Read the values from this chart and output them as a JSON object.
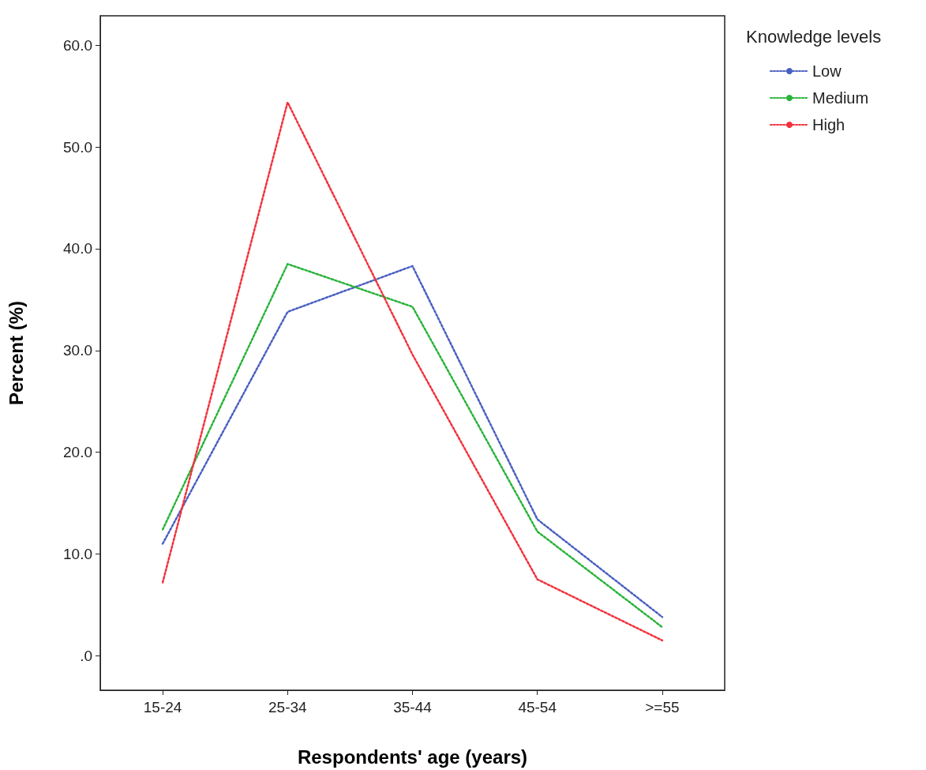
{
  "chart_data": {
    "type": "line",
    "xlabel": "Respondents' age (years)",
    "ylabel": "Percent (%)",
    "legend_title": "Knowledge levels",
    "categories": [
      "15-24",
      "25-34",
      "35-44",
      "45-54",
      ">=55"
    ],
    "series": [
      {
        "name": "Low",
        "color": "#4a5fc1",
        "values": [
          11.0,
          33.8,
          38.3,
          13.4,
          3.8
        ]
      },
      {
        "name": "Medium",
        "color": "#29b33a",
        "values": [
          12.4,
          38.5,
          34.3,
          12.2,
          2.8
        ]
      },
      {
        "name": "High",
        "color": "#f2313b",
        "values": [
          7.2,
          54.4,
          29.6,
          7.5,
          1.5
        ]
      }
    ],
    "ylim": [
      -3.4,
      62.9
    ],
    "yticks": [
      {
        "value": 0,
        "label": ".0"
      },
      {
        "value": 10,
        "label": "10.0"
      },
      {
        "value": 20,
        "label": "20.0"
      },
      {
        "value": 30,
        "label": "30.0"
      },
      {
        "value": 40,
        "label": "40.0"
      },
      {
        "value": 50,
        "label": "50.0"
      },
      {
        "value": 60,
        "label": "60.0"
      }
    ],
    "grid": false,
    "legend": "top right",
    "marker": "none",
    "line_style": "dotted"
  }
}
